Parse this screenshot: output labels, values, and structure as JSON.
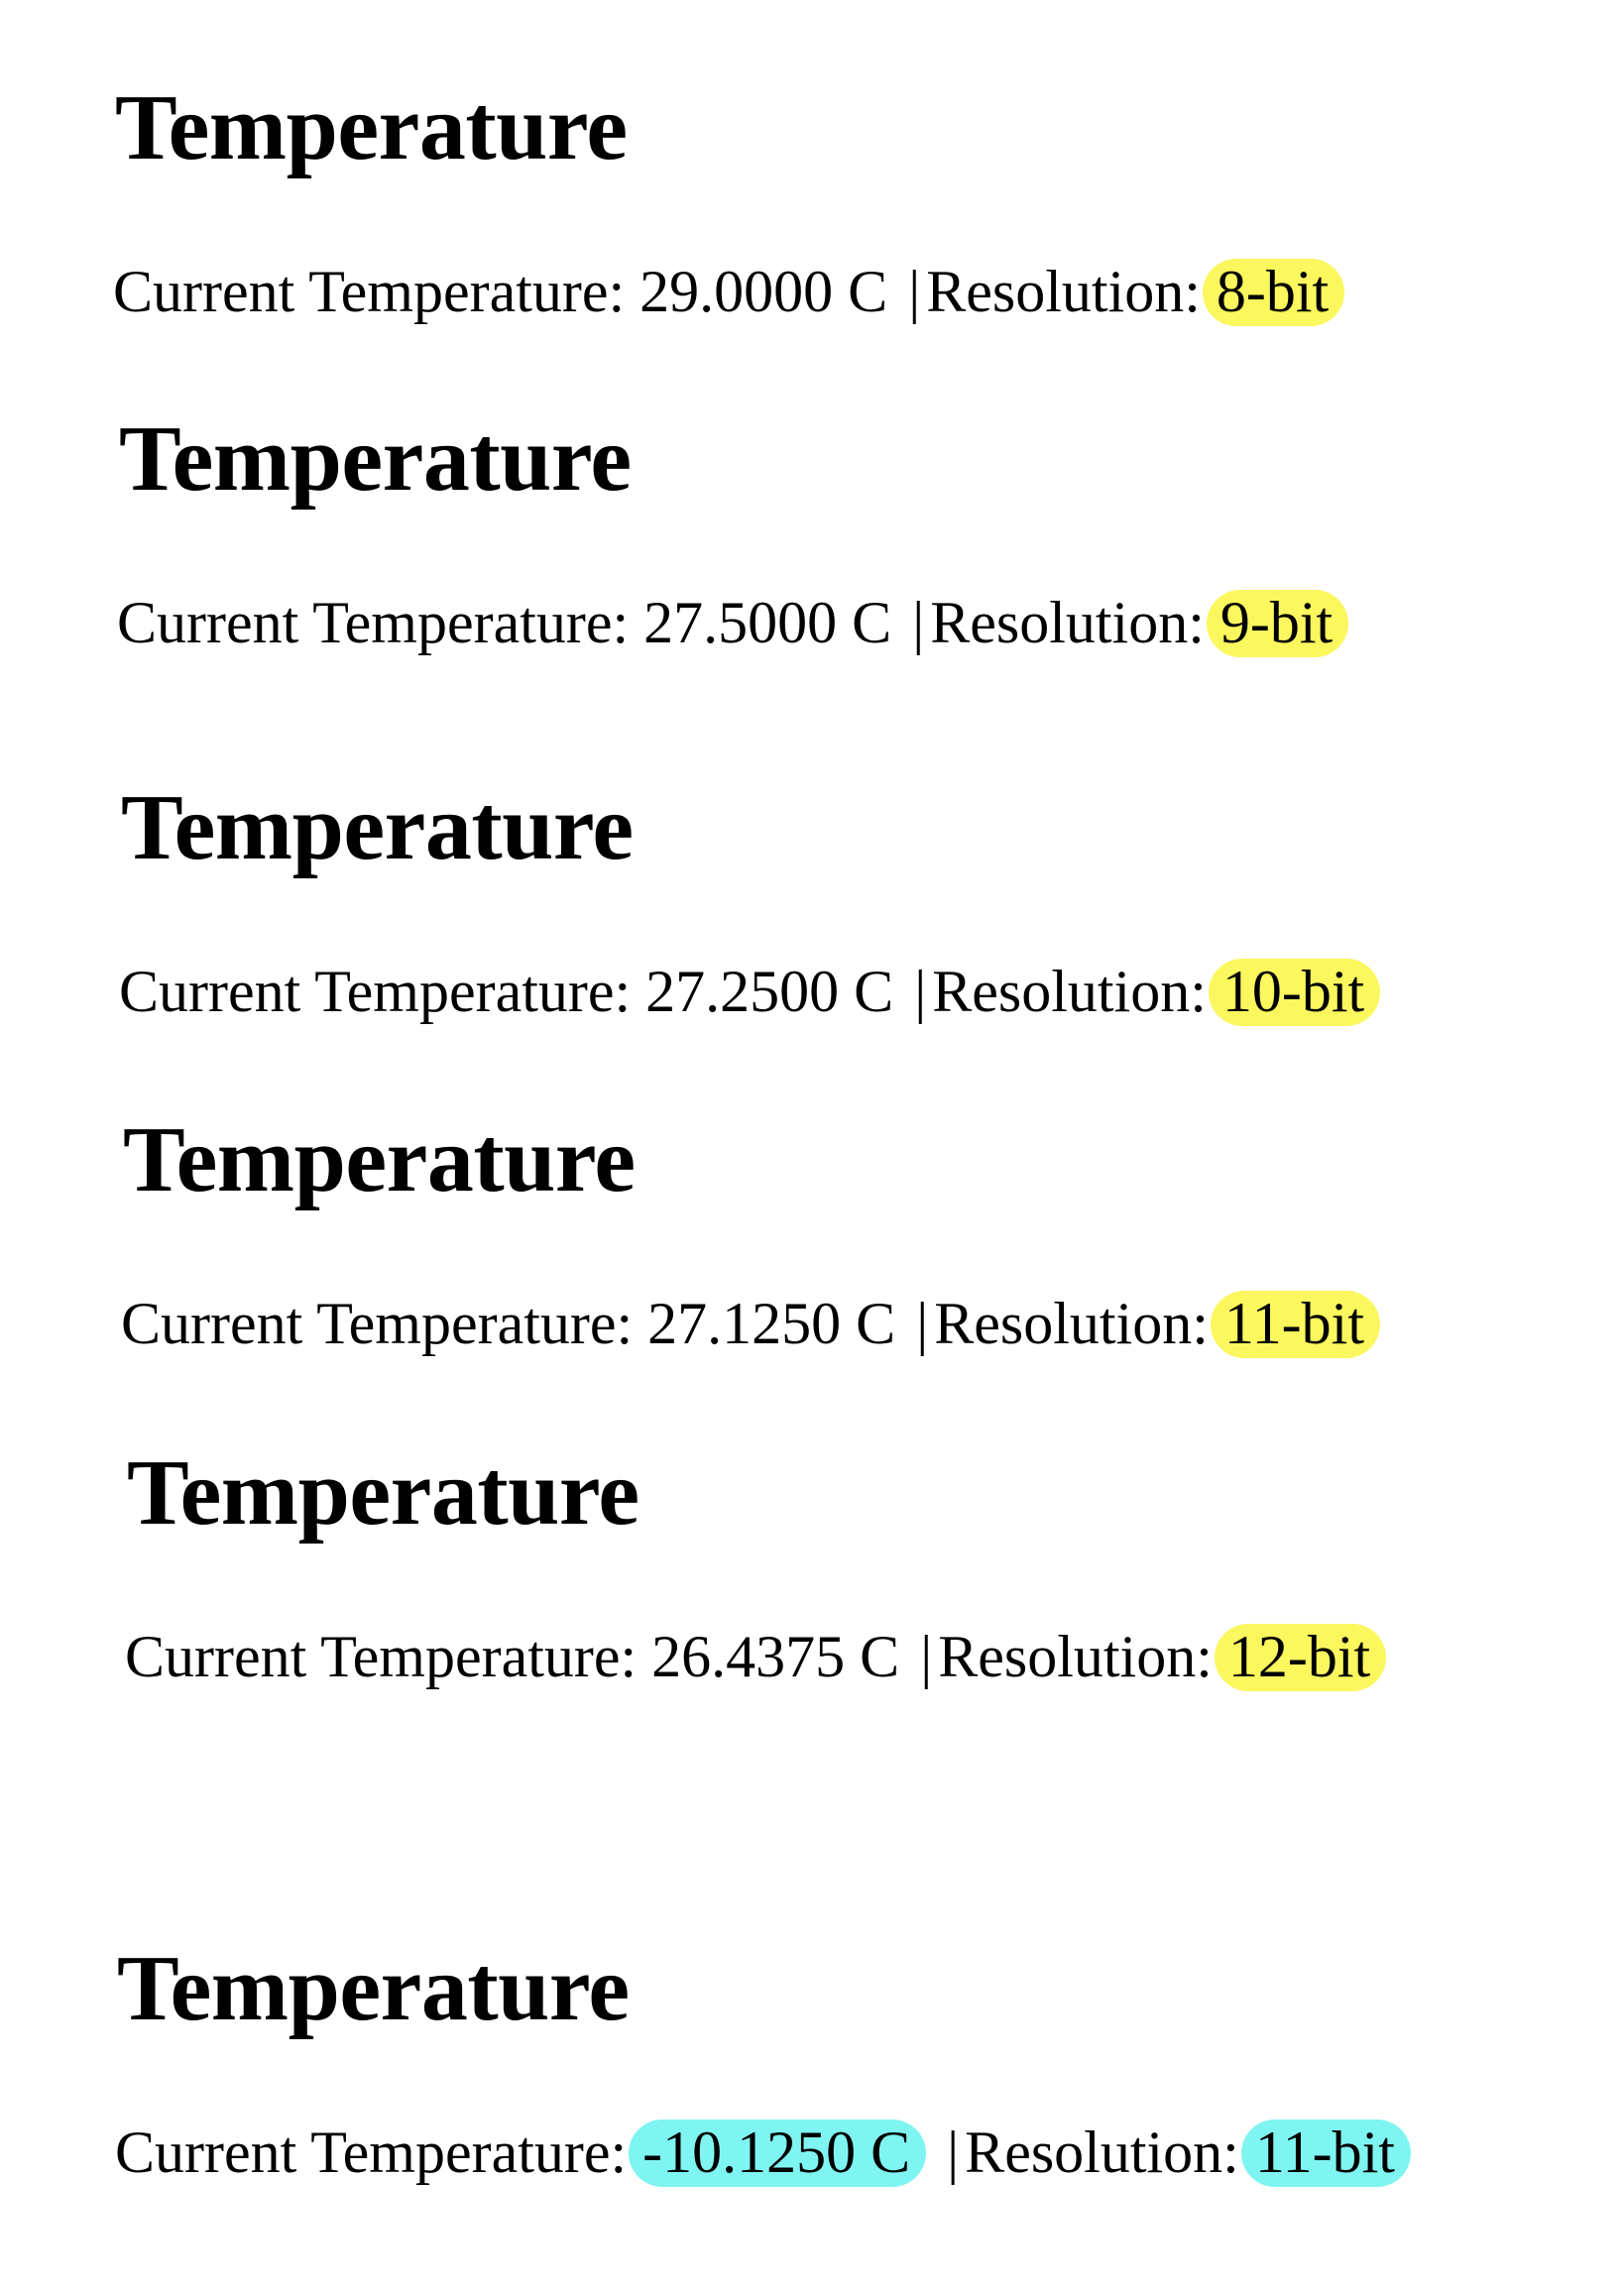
{
  "colors": {
    "highlight_yellow": "#fbf75e",
    "highlight_cyan": "#7ff5f2",
    "text": "#000000",
    "background": "#ffffff"
  },
  "readings": [
    {
      "heading": "Temperature",
      "label": "Current Temperature:",
      "value": "29.0000 C",
      "separator": "|",
      "resolution_label": "Resolution:",
      "resolution": "8-bit",
      "value_highlight": "none",
      "resolution_highlight": "yellow"
    },
    {
      "heading": "Temperature",
      "label": "Current Temperature:",
      "value": "27.5000 C",
      "separator": "|",
      "resolution_label": "Resolution:",
      "resolution": "9-bit",
      "value_highlight": "none",
      "resolution_highlight": "yellow"
    },
    {
      "heading": "Temperature",
      "label": "Current Temperature:",
      "value": "27.2500 C",
      "separator": "|",
      "resolution_label": "Resolution:",
      "resolution": "10-bit",
      "value_highlight": "none",
      "resolution_highlight": "yellow"
    },
    {
      "heading": "Temperature",
      "label": "Current Temperature:",
      "value": "27.1250 C",
      "separator": "|",
      "resolution_label": "Resolution:",
      "resolution": "11-bit",
      "value_highlight": "none",
      "resolution_highlight": "yellow"
    },
    {
      "heading": "Temperature",
      "label": "Current Temperature:",
      "value": "26.4375 C",
      "separator": "|",
      "resolution_label": "Resolution:",
      "resolution": "12-bit",
      "value_highlight": "none",
      "resolution_highlight": "yellow"
    },
    {
      "heading": "Temperature",
      "label": "Current Temperature:",
      "value": "-10.1250 C",
      "separator": "|",
      "resolution_label": "Resolution:",
      "resolution": "11-bit",
      "value_highlight": "cyan",
      "resolution_highlight": "cyan"
    }
  ]
}
